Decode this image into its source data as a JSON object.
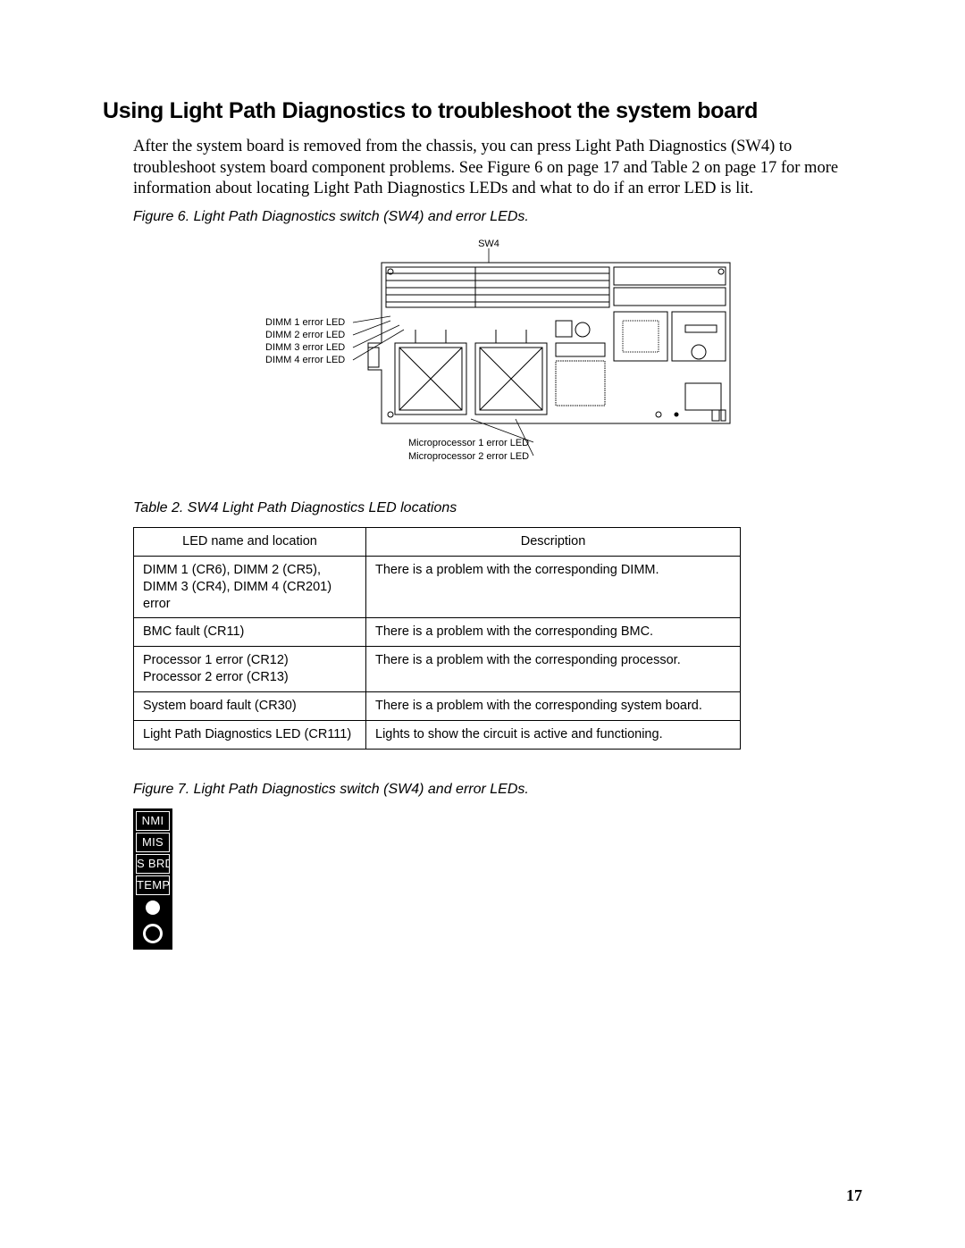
{
  "heading": "Using Light Path Diagnostics to troubleshoot the system board",
  "intro": "After the system board is removed from the chassis, you can press Light Path Diagnostics (SW4) to troubleshoot system board component problems. See Figure 6 on page 17 and Table 2 on page 17 for more information about locating Light Path Diagnostics LEDs and what to do if an error LED is lit.",
  "fig6_caption": "Figure 6. Light Path Diagnostics switch (SW4) and error LEDs.",
  "fig6": {
    "sw4_label": "SW4",
    "dimm_labels": [
      "DIMM 1 error LED",
      "DIMM 2 error LED",
      "DIMM 3 error LED",
      "DIMM 4 error LED"
    ],
    "mp_labels": [
      "Microprocessor 1 error LED",
      "Microprocessor 2 error LED"
    ]
  },
  "table2_caption": "Table 2. SW4 Light Path Diagnostics LED locations",
  "table2": {
    "columns": [
      "LED name and location",
      "Description"
    ],
    "rows": [
      [
        "DIMM 1 (CR6), DIMM 2 (CR5),\nDIMM 3 (CR4), DIMM 4 (CR201) error",
        "There is a problem with the corresponding DIMM."
      ],
      [
        "BMC fault (CR11)",
        "There is a problem with the corresponding BMC."
      ],
      [
        "Processor 1 error (CR12)\nProcessor 2 error (CR13)",
        "There is a problem with the corresponding processor."
      ],
      [
        "System board fault (CR30)",
        "There is a problem with the corresponding system board."
      ],
      [
        "Light Path Diagnostics LED (CR111)",
        "Lights to show the circuit is active and functioning."
      ]
    ]
  },
  "fig7_caption": "Figure 7. Light Path Diagnostics switch (SW4) and error LEDs.",
  "fig7": {
    "items": [
      "NMI",
      "MIS",
      "S BRD",
      "TEMP"
    ]
  },
  "page_number": "17"
}
